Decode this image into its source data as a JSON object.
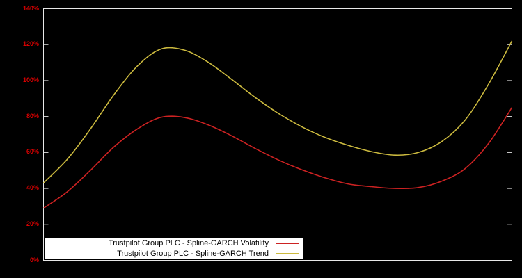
{
  "chart_data": {
    "type": "line",
    "title": "",
    "xlabel": "",
    "ylabel": "",
    "ylim": [
      0,
      140
    ],
    "ytick_step": 20,
    "yticks": [
      "0%",
      "20%",
      "40%",
      "60%",
      "80%",
      "100%",
      "120%",
      "140%"
    ],
    "grid": false,
    "legend_position": "bottom-left",
    "x_axis_labels_visible": false,
    "series": [
      {
        "name": "Trustpilot Group PLC - Spline-GARCH Volatility",
        "color": "#cc2222",
        "values": [
          29,
          38,
          50,
          63,
          73,
          79.5,
          79.5,
          75.5,
          69.5,
          62.5,
          56,
          50.5,
          46,
          42.5,
          41,
          40,
          40.5,
          44,
          51,
          65,
          85
        ]
      },
      {
        "name": "Trustpilot Group PLC - Spline-GARCH Trend",
        "color": "#ccba3f",
        "values": [
          43,
          56,
          73,
          92,
          108,
          117.5,
          117,
          110.5,
          101,
          91,
          82,
          74.5,
          68.5,
          64,
          60.5,
          58.5,
          60,
          66,
          78,
          98,
          122
        ]
      }
    ]
  },
  "colors": {
    "background": "#000000",
    "frame": "#e8e8e8",
    "tick_label": "#dd0000",
    "legend_background": "#ffffff",
    "legend_text": "#000000"
  }
}
